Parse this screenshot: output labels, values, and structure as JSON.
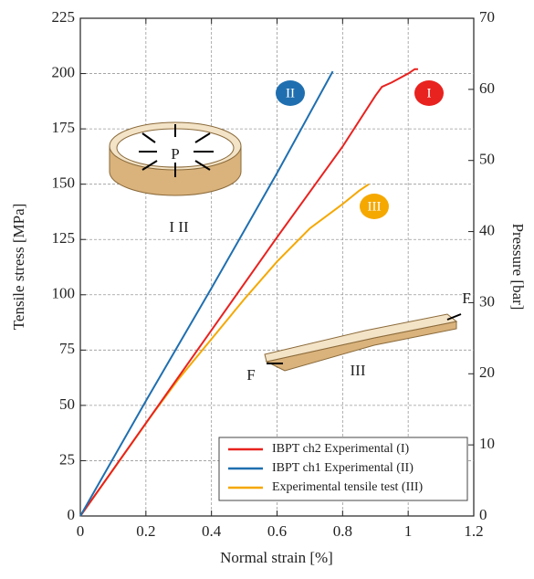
{
  "chart_data": {
    "type": "line",
    "xlabel": "Normal strain [%]",
    "ylabel": "Tensile stress [MPa]",
    "y2label": "Pressure [bar]",
    "xlim": [
      0,
      1.2
    ],
    "xticks": [
      0,
      0.2,
      0.4,
      0.6,
      0.8,
      1.0,
      1.2
    ],
    "ylim": [
      0,
      225
    ],
    "yticks": [
      0,
      25,
      50,
      75,
      100,
      125,
      150,
      175,
      200,
      225
    ],
    "y2lim": [
      0,
      70
    ],
    "y2ticks": [
      0,
      10,
      20,
      30,
      40,
      50,
      60,
      70
    ],
    "grid": true,
    "legend": "lower right",
    "series": [
      {
        "name": "IBPT ch2 Experimental (I)",
        "color": "#e8221f",
        "x": [
          0,
          0.2,
          0.4,
          0.6,
          0.8,
          0.9,
          0.92,
          0.95,
          1.0,
          1.02,
          1.03
        ],
        "values": [
          0,
          42,
          84,
          126,
          167,
          190,
          194,
          196,
          200,
          202,
          202
        ]
      },
      {
        "name": "IBPT ch1 Experimental (II)",
        "color": "#1f6fb0",
        "x": [
          0,
          0.2,
          0.4,
          0.6,
          0.77
        ],
        "values": [
          0,
          52,
          103,
          155,
          201
        ]
      },
      {
        "name": "Experimental tensile test (III)",
        "color": "#f5a800",
        "x": [
          0,
          0.22,
          0.3,
          0.4,
          0.5,
          0.6,
          0.7,
          0.8,
          0.85,
          0.88
        ],
        "values": [
          0,
          46,
          62,
          80,
          98,
          115,
          130,
          141,
          147,
          150
        ]
      }
    ],
    "annotations": [
      "II",
      "I",
      "III",
      "P",
      "I  II",
      "F",
      "F",
      "III"
    ]
  }
}
